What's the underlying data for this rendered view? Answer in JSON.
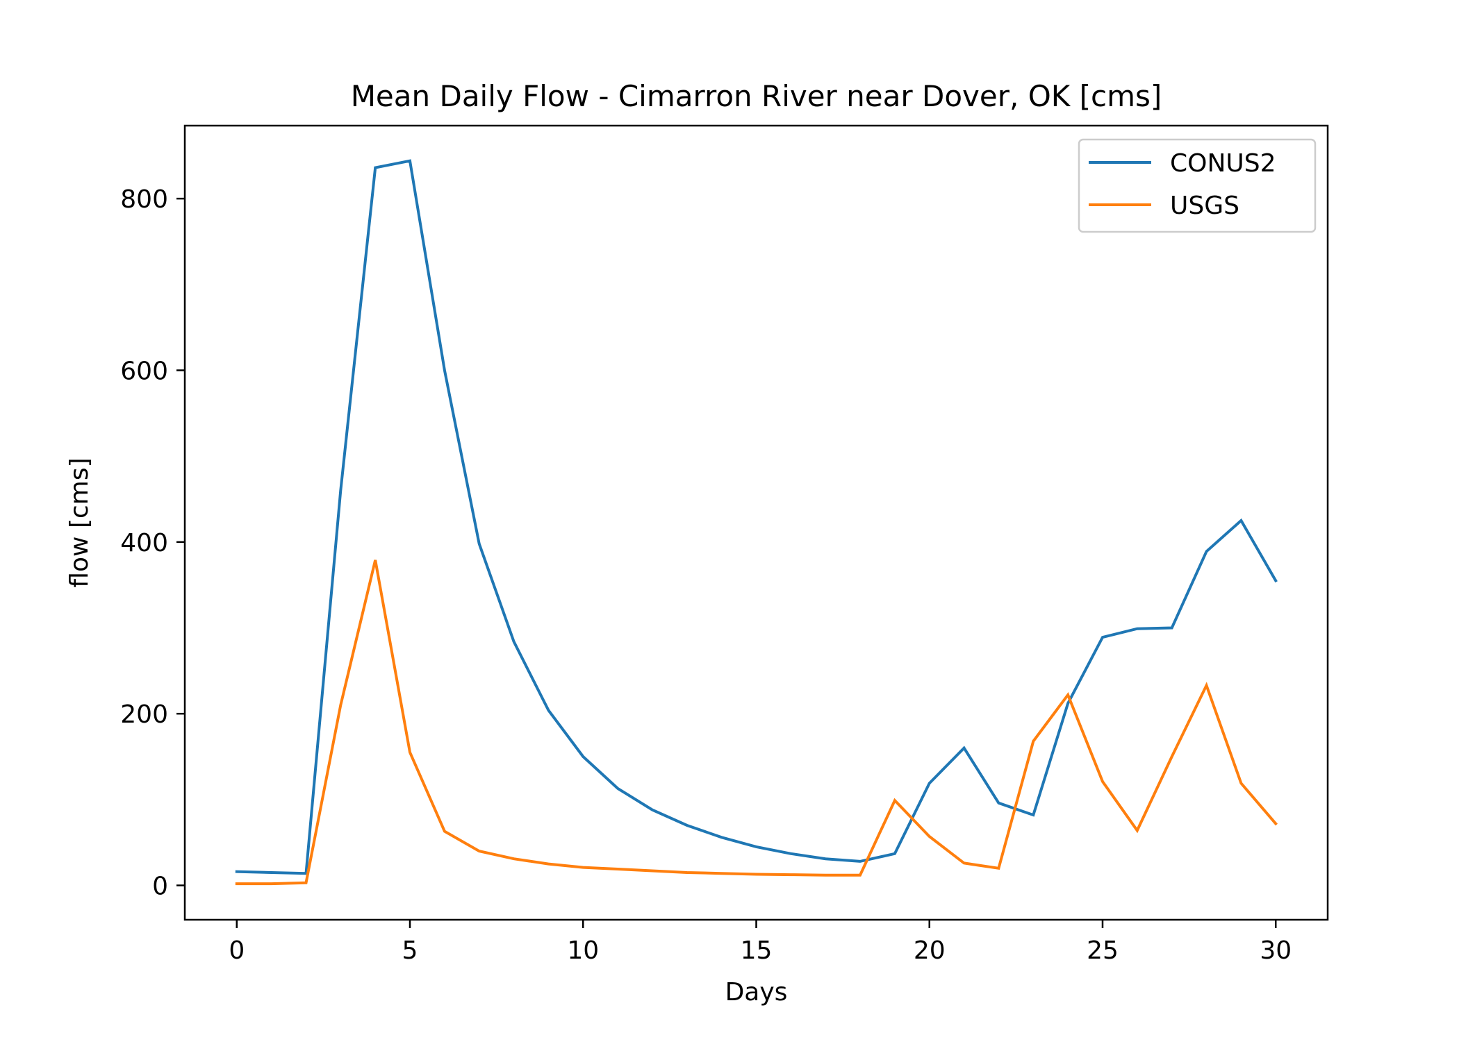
{
  "chart_data": {
    "type": "line",
    "title": "Mean Daily Flow - Cimarron River near Dover, OK [cms]",
    "xlabel": "Days",
    "ylabel": "flow [cms]",
    "xlim": [
      -1.5,
      31.5
    ],
    "ylim": [
      -40,
      885
    ],
    "x_ticks": [
      0,
      5,
      10,
      15,
      20,
      25,
      30
    ],
    "x_tick_labels": [
      "0",
      "5",
      "10",
      "15",
      "20",
      "25",
      "30"
    ],
    "y_ticks": [
      0,
      200,
      400,
      600,
      800
    ],
    "y_tick_labels": [
      "0",
      "200",
      "400",
      "600",
      "800"
    ],
    "grid": false,
    "legend_position": "top-right",
    "x": [
      0,
      1,
      2,
      3,
      4,
      5,
      6,
      7,
      8,
      9,
      10,
      11,
      12,
      13,
      14,
      15,
      16,
      17,
      18,
      19,
      20,
      21,
      22,
      23,
      24,
      25,
      26,
      27,
      28,
      29,
      30
    ],
    "series": [
      {
        "name": "CONUS2",
        "color": "#1f77b4",
        "values": [
          16,
          15,
          14,
          460,
          836,
          844,
          600,
          398,
          284,
          204,
          150,
          113,
          88,
          70,
          56,
          45,
          37,
          31,
          28,
          37,
          119,
          160,
          96,
          82,
          212,
          289,
          299,
          300,
          389,
          425,
          355
        ]
      },
      {
        "name": "USGS",
        "color": "#ff7f0e",
        "values": [
          2,
          2,
          3,
          210,
          379,
          155,
          63,
          40,
          31,
          25,
          21,
          19,
          17,
          15,
          14,
          13,
          12.5,
          12,
          12,
          99,
          57,
          26,
          20,
          168,
          222,
          121,
          64,
          150,
          233,
          119,
          72
        ]
      }
    ]
  }
}
